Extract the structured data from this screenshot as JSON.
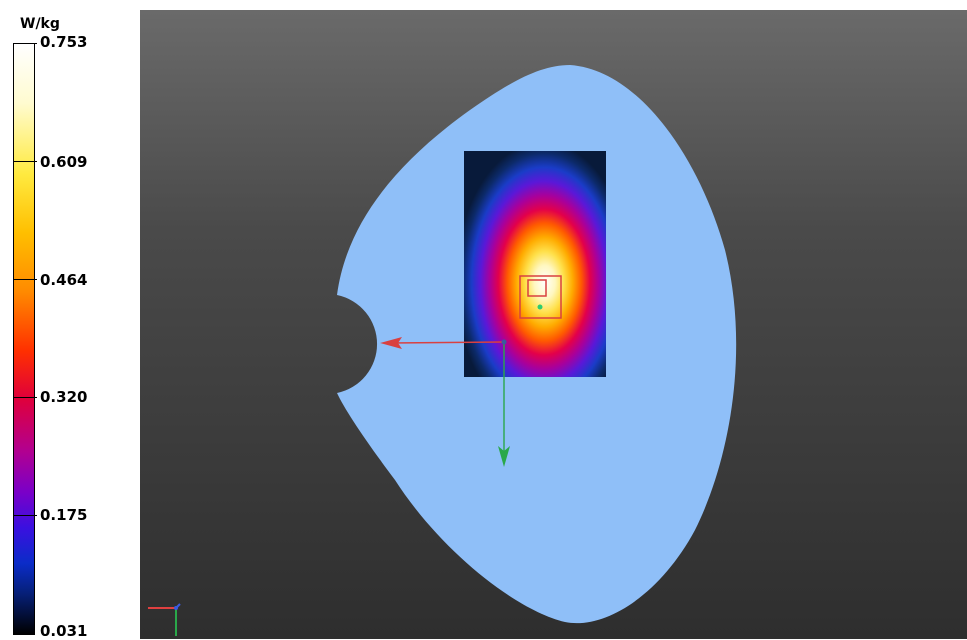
{
  "legend": {
    "unit": "W/kg",
    "ticks": [
      {
        "label": "0.753",
        "value": 0.753
      },
      {
        "label": "0.609",
        "value": 0.609
      },
      {
        "label": "0.464",
        "value": 0.464
      },
      {
        "label": "0.320",
        "value": 0.32
      },
      {
        "label": "0.175",
        "value": 0.175
      },
      {
        "label": "0.031",
        "value": 0.031
      }
    ]
  },
  "colors": {
    "phantom": "#8fbff8",
    "background_top": "#6a6a6a",
    "background_bottom": "#2e2e2e",
    "axis_x": "#d94040",
    "axis_y": "#2aa84a",
    "marker": "#d94040"
  }
}
